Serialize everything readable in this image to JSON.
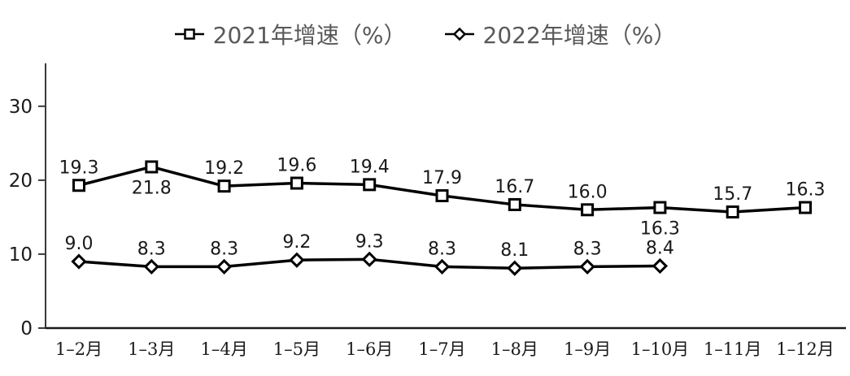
{
  "legend": {
    "items": [
      {
        "label": "2021年增速（%）",
        "marker": "square"
      },
      {
        "label": "2022年增速（%）",
        "marker": "diamond"
      }
    ]
  },
  "chart_data": {
    "type": "line",
    "title": "",
    "xlabel": "",
    "ylabel": "",
    "categories": [
      "1–2月",
      "1–3月",
      "1–4月",
      "1–5月",
      "1–6月",
      "1–7月",
      "1–8月",
      "1–9月",
      "1–10月",
      "1–11月",
      "1–12月"
    ],
    "yticks": [
      0,
      10,
      20,
      30
    ],
    "ylim": [
      0,
      35.8
    ],
    "grid": false,
    "legend_position": "top-center",
    "series": [
      {
        "name": "2021年增速（%）",
        "marker": "square",
        "values": [
          19.3,
          21.8,
          19.2,
          19.6,
          19.4,
          17.9,
          16.7,
          16.0,
          16.3,
          15.7,
          16.3
        ],
        "label_positions": [
          "above",
          "below",
          "above",
          "above",
          "above",
          "above",
          "above",
          "above",
          "below",
          "above",
          "above"
        ]
      },
      {
        "name": "2022年增速（%）",
        "marker": "diamond",
        "values": [
          9.0,
          8.3,
          8.3,
          9.2,
          9.3,
          8.3,
          8.1,
          8.3,
          8.4
        ],
        "label_positions": [
          "above",
          "above",
          "above",
          "above",
          "above",
          "above",
          "above",
          "above",
          "above"
        ]
      }
    ],
    "colors": {
      "series_line": "#000000",
      "marker_fill": "#ffffff",
      "data_label_text": "#1a1a1a",
      "axis_line": "#3a3a3a",
      "tick_label_text": "#1a1a1a",
      "legend_text": "#595959",
      "background": "#ffffff"
    }
  }
}
